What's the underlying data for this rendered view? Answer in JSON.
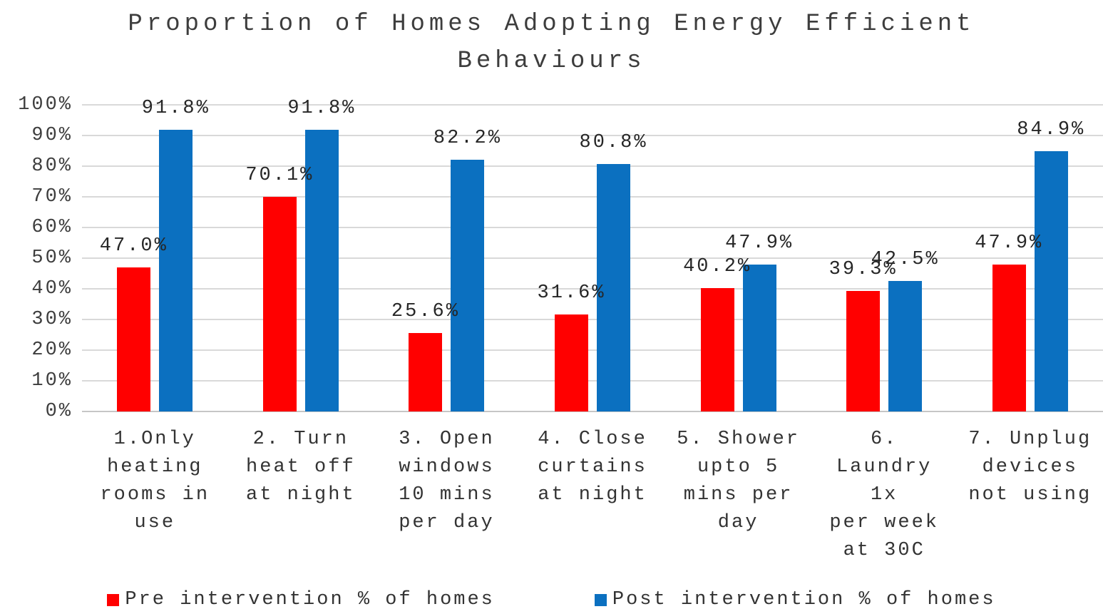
{
  "chart_data": {
    "type": "bar",
    "title": "Proportion of Homes Adopting Energy Efficient Behaviours",
    "categories": [
      "1.Only\nheating\nrooms in\nuse",
      "2. Turn\nheat off\nat night",
      "3. Open\nwindows\n10 mins\nper day",
      "4. Close\ncurtains\nat night",
      "5. Shower\nupto 5\nmins per\nday",
      "6.\nLaundry\n1x\nper week\nat 30C",
      "7. Unplug\ndevices\nnot using"
    ],
    "series": [
      {
        "name": "Pre intervention % of homes",
        "color": "#FF0000",
        "values": [
          47.0,
          70.1,
          25.6,
          31.6,
          40.2,
          39.3,
          47.9
        ],
        "labels": [
          "47.0%",
          "70.1%",
          "25.6%",
          "31.6%",
          "40.2%",
          "39.3%",
          "47.9%"
        ]
      },
      {
        "name": "Post intervention % of homes",
        "color": "#0B70C0",
        "values": [
          91.8,
          91.8,
          82.2,
          80.8,
          47.9,
          42.5,
          84.9
        ],
        "labels": [
          "91.8%",
          "91.8%",
          "82.2%",
          "80.8%",
          "47.9%",
          "42.5%",
          "84.9%"
        ]
      }
    ],
    "xlabel": "",
    "ylabel": "",
    "ylim": [
      0,
      100
    ],
    "y_ticks": [
      "0%",
      "10%",
      "20%",
      "30%",
      "40%",
      "50%",
      "60%",
      "70%",
      "80%",
      "90%",
      "100%"
    ],
    "grid": true,
    "legend_position": "bottom",
    "colors": {
      "grid_line": "#D9D9D9",
      "axis_line": "#C6C6C6",
      "title_text": "#3D3D3D",
      "label_text": "#262626"
    }
  }
}
